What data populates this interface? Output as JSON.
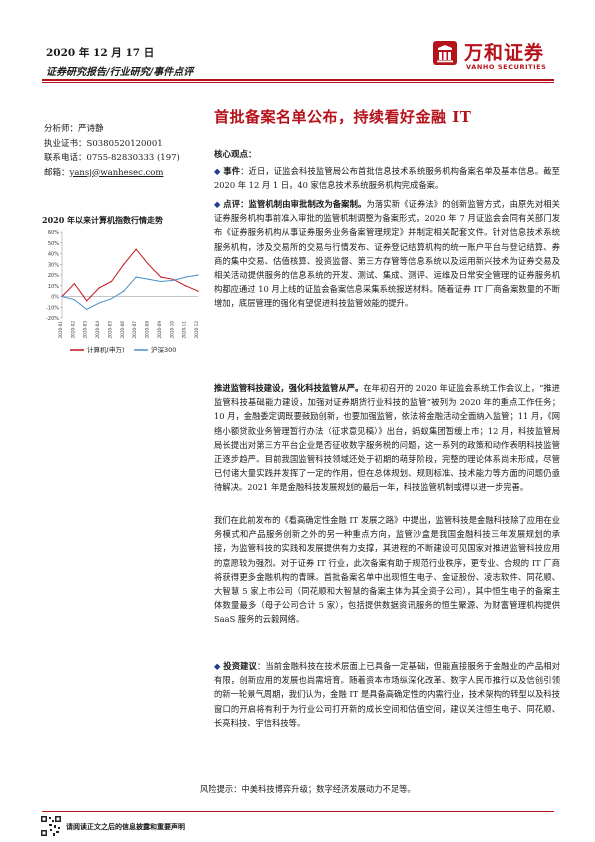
{
  "header": {
    "date": "2020 年 12 月 17 日",
    "category": "证券研究报告/行业研究/事件点评"
  },
  "logo": {
    "name_cn": "万和证券",
    "name_en": "VANHO SECURITIES",
    "color": "#b5121b"
  },
  "title": "首批备案名单公布，持续看好金融 IT",
  "analyst": {
    "name_label": "分析师：",
    "name": "严诗静",
    "cert_label": "执业证书：",
    "cert": "S0380520120001",
    "phone_label": "联系电话：",
    "phone": "0755-82830333 (197)",
    "email_label": "邮箱：",
    "email": "yansj@wanhesec.com"
  },
  "chart": {
    "title": "2020 年以来计算机指数行情走势"
  },
  "chart_data": {
    "type": "line",
    "title": "2020 年以来计算机指数行情走势",
    "x": [
      "2020-01",
      "2020-02",
      "2020-03",
      "2020-04",
      "2020-05",
      "2020-06",
      "2020-07",
      "2020-08",
      "2020-09",
      "2020-10",
      "2020-11",
      "2020-12"
    ],
    "ylim": [
      -20,
      60
    ],
    "yticks": [
      "-20%",
      "-10%",
      "0%",
      "10%",
      "20%",
      "30%",
      "40%",
      "50%",
      "60%"
    ],
    "series": [
      {
        "name": "计算机(申万)",
        "color": "#c0141c",
        "values": [
          0,
          12,
          -4,
          8,
          14,
          30,
          44,
          30,
          18,
          16,
          10,
          5
        ]
      },
      {
        "name": "沪深300",
        "color": "#4a90c8",
        "values": [
          0,
          -3,
          -12,
          -6,
          -2,
          5,
          18,
          16,
          14,
          15,
          18,
          20
        ]
      }
    ]
  },
  "body": {
    "core_title": "核心观点：",
    "event_label": "事件",
    "event_text": "：近日，证监会科技监管局公布首批信息技术系统服务机构备案名单及基本信息。截至 2020 年 12 月 1 日，40 家信息技术系统服务机构完成备案。",
    "point_label": "点评",
    "point_lead": "：监管机制由审批制改为备案制。",
    "point_text": "为落实新《证券法》的创新监管方式，由原先对相关证券服务机构事前准入审批的监管机制调整为备案形式，2020 年 7 月证监会会同有关部门发布《证券服务机构从事证券服务业务备案管理规定》并制定相关配套文件。针对信息技术系统服务机构，涉及交易所的交易与行情发布、证券登记结算机构的统一账户平台与登记结算、券商的集中交易、估值核算、投资监督、第三方存管等信息系统以及运用新兴技术为证券交易及相关活动提供服务的信息系统的开发、测试、集成、测评、运维及日常安全管理的证券服务机构都应通过 10 月上线的证监会备案信息采集系统报送材料。随着证券 IT 厂商备案数量的不断增加，底层管理的强化有望促进科技监管效能的提升。",
    "para2_lead": "推进监管科技建设，强化科技监管从严。",
    "para2_text": "在年初召开的 2020 年证监会系统工作会议上，“推进监管科技基础能力建设，加强对证券期货行业科技的监管”被列为 2020 年的重点工作任务；10 月，金融委定调既要鼓励创新，也要加强监管，依法将金融活动全面纳入监管；11 月，《网络小额贷款业务管理暂行办法（征求意见稿）》出台，蚂蚁集团暂缓上市；12 月，科技监管局局长提出对第三方平台企业是否征收数字服务税的问题，这一系列的政策和动作表明科技监管正逐步趋严。目前我国监管科技领域还处于初期的萌芽阶段，完整的理论体系尚未形成，尽管已付诸大量实践并发挥了一定的作用，但在总体规划、规则标准、技术能力等方面的问题仍亟待解决。2021 年是金融科技发展规划的最后一年，科技监管机制或得以进一步完善。",
    "para3_text": "我们在此前发布的《看高确定性金融 IT 发展之路》中提出，监管科技是金融科技除了应用在业务模式和产品服务创新之外的另一种重点方向，监管沙盒是我国金融科技三年发展规划的承接，为监管科技的实践和发展提供有力支撑，其进程的不断建设可见国家对推进监管科技应用的意愿较为强烈。对于证券 IT 行业，此次备案有助于规范行业秩序，更专业、合规的 IT 厂商将获得更多金融机构的青睐。首批备案名单中出现恒生电子、金证股份、凌志软件、同花顺、大智慧 5 家上市公司（同花顺和大智慧的备案主体为其全资子公司），其中恒生电子的备案主体数量最多（母子公司合计 5 家），包括提供数据资讯服务的恒生聚源、为财富管理机构提供 SaaS 服务的云毅网络。",
    "invest_label": "投资建议",
    "invest_text": "：当前金融科技在技术层面上已具备一定基础，但能直接服务于金融业的产品相对有限，创新应用的发展也尚需培育。随着资本市场纵深化改革、数字人民币推行以及信创引领的新一轮景气周期，我们认为，金融 IT 是具备高确定性的内需行业，技术架构的转型以及科技窗口的开启将有利于为行业公司打开新的成长空间和估值空间，建议关注恒生电子、同花顺、长亮科技、宇信科技等。"
  },
  "risk": "风险提示：中美科技博弈升级；数字经济发展动力不足等。",
  "footer": "请阅读正文之后的信息披露和重要声明"
}
